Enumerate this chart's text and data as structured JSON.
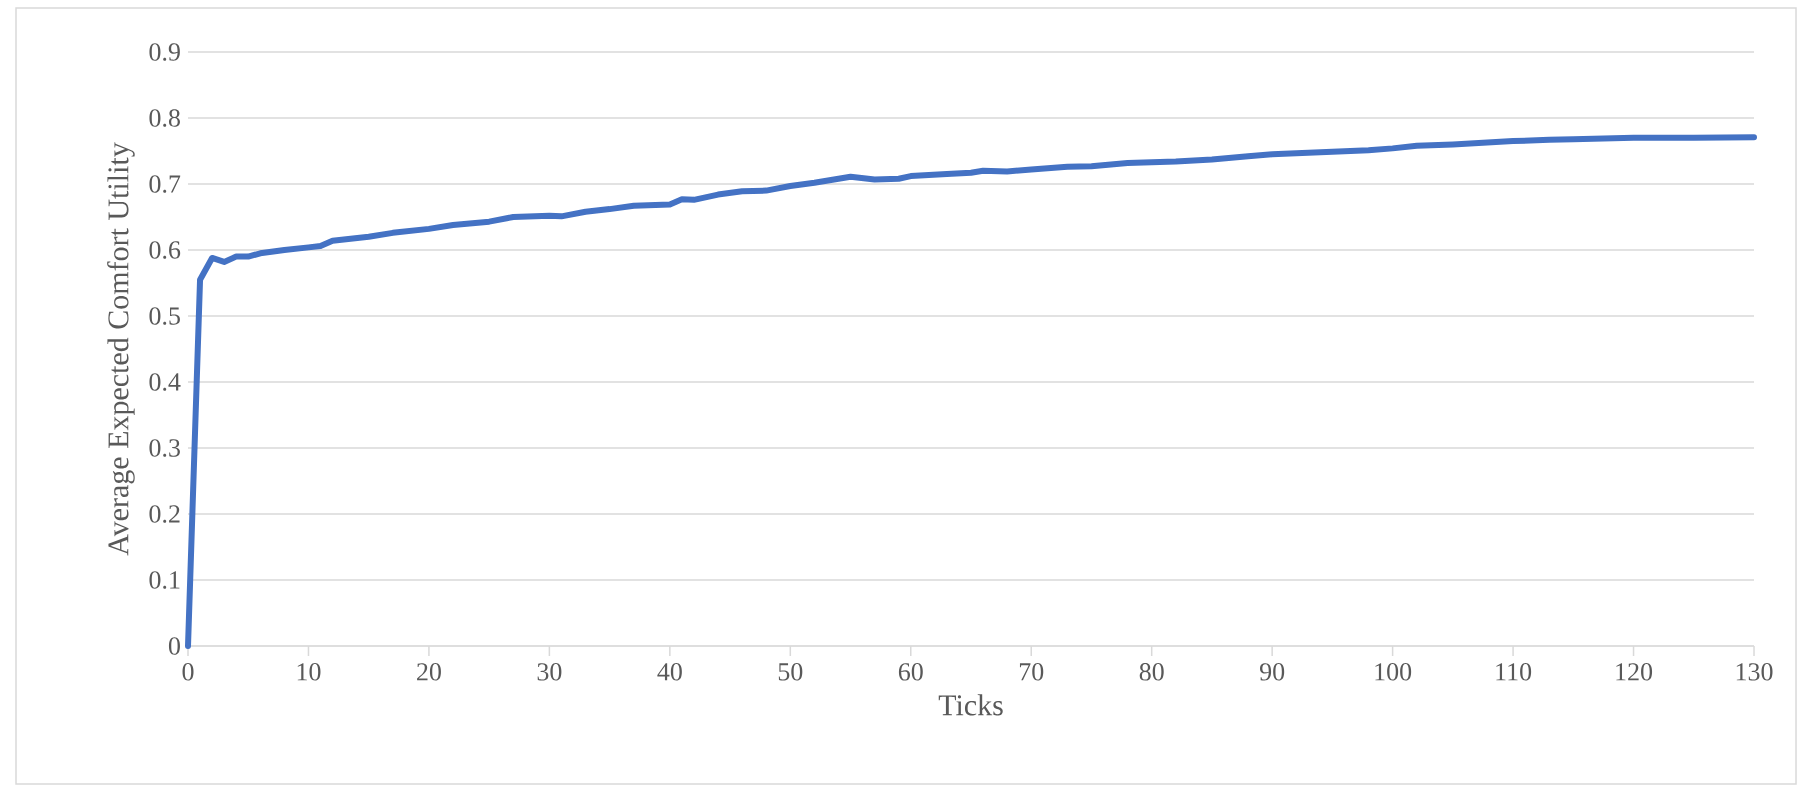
{
  "chart_data": {
    "type": "line",
    "xlabel": "Ticks",
    "ylabel": "Average Expected Comfort Utility",
    "x": [
      0,
      1,
      2,
      3,
      4,
      5,
      6,
      8,
      10,
      11,
      12,
      15,
      17,
      20,
      22,
      25,
      27,
      30,
      31,
      33,
      35,
      37,
      40,
      41,
      42,
      44,
      46,
      48,
      50,
      52,
      54,
      55,
      57,
      59,
      60,
      63,
      65,
      66,
      68,
      70,
      73,
      75,
      78,
      80,
      82,
      85,
      88,
      90,
      95,
      98,
      100,
      102,
      105,
      110,
      113,
      115,
      120,
      125,
      130
    ],
    "series": [
      {
        "color": "#4472c4",
        "values": [
          0,
          0.555,
          0.588,
          0.582,
          0.59,
          0.59,
          0.595,
          0.6,
          0.604,
          0.606,
          0.614,
          0.62,
          0.626,
          0.632,
          0.638,
          0.643,
          0.65,
          0.652,
          0.651,
          0.658,
          0.662,
          0.667,
          0.669,
          0.677,
          0.676,
          0.684,
          0.689,
          0.69,
          0.697,
          0.702,
          0.708,
          0.711,
          0.707,
          0.708,
          0.712,
          0.715,
          0.717,
          0.72,
          0.719,
          0.722,
          0.726,
          0.727,
          0.732,
          0.733,
          0.734,
          0.737,
          0.742,
          0.745,
          0.749,
          0.751,
          0.754,
          0.758,
          0.76,
          0.765,
          0.767,
          0.768,
          0.77,
          0.77,
          0.771
        ]
      }
    ],
    "xlim": [
      0,
      130
    ],
    "xticks": [
      0,
      10,
      20,
      30,
      40,
      50,
      60,
      70,
      80,
      90,
      100,
      110,
      120,
      130
    ],
    "ylim": [
      0,
      0.9
    ],
    "yticks": [
      0,
      0.1,
      0.2,
      0.3,
      0.4,
      0.5,
      0.6,
      0.7,
      0.8,
      0.9
    ],
    "grid": "y",
    "legend": false,
    "marker": "none",
    "line_style": "solid"
  }
}
